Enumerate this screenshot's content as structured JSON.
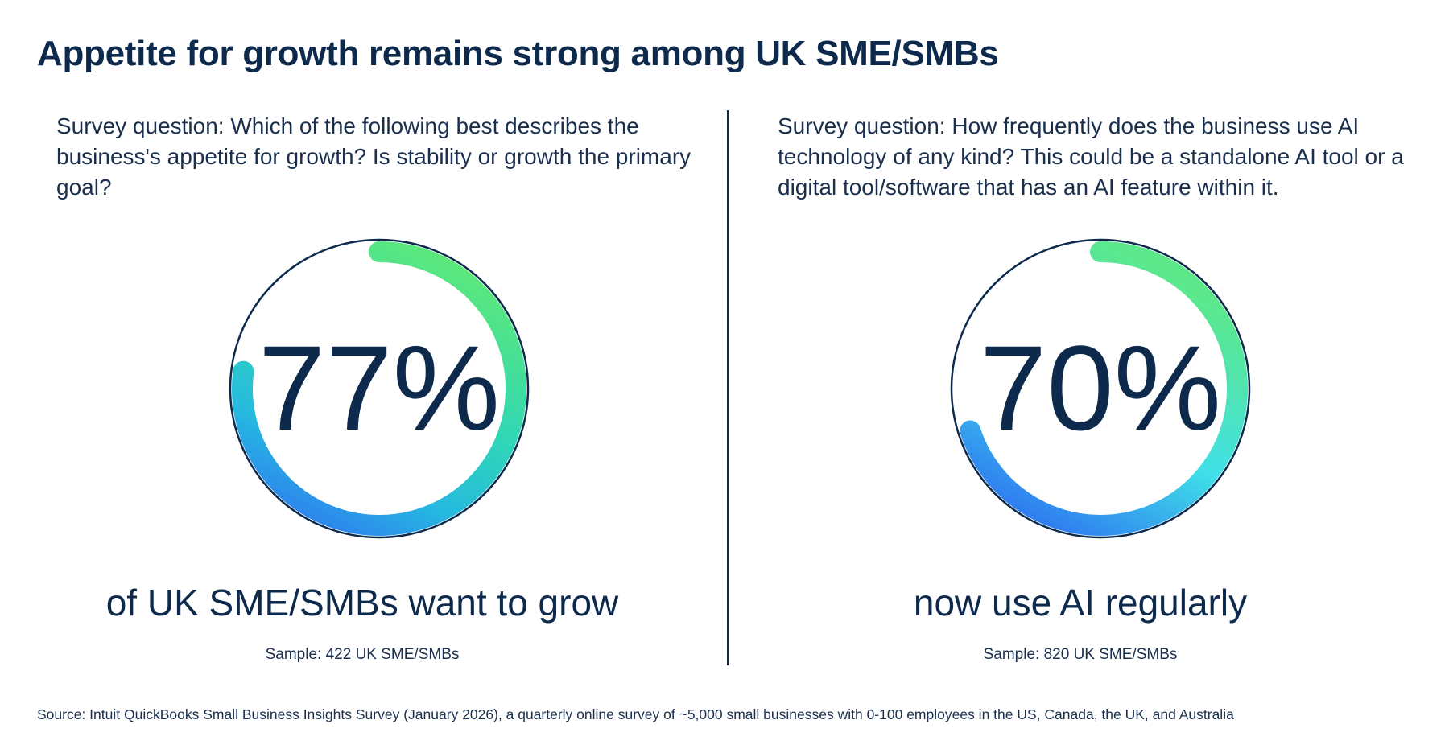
{
  "title": "Appetite for growth remains strong among UK SME/SMBs",
  "left": {
    "question": "Survey question: Which of the following best describes the business's appetite for growth? Is stability or growth the primary goal?",
    "stat": "77%",
    "caption": "of UK SME/SMBs want to grow",
    "sample": "Sample: 422 UK SME/SMBs"
  },
  "right": {
    "question": "Survey question: How frequently does the business use AI technology of any kind? This could be a standalone AI tool or a digital tool/software that has an AI feature within it.",
    "stat": "70%",
    "caption": "now use AI regularly",
    "sample": "Sample: 820 UK SME/SMBs"
  },
  "source": "Source: Intuit QuickBooks Small Business Insights Survey (January 2026), a quarterly online survey of ~5,000 small businesses with 0-100 employees in the US, Canada, the UK, and Australia",
  "colors": {
    "navy": "#0d2a4d",
    "left_gradient": [
      "#5ce87a",
      "#2fd6b8",
      "#25b9e0",
      "#2f7df0"
    ],
    "right_gradient": [
      "#5ce88a",
      "#3fe0e8",
      "#2f7df0"
    ]
  },
  "chart_data": [
    {
      "type": "donut",
      "title": "",
      "values": [
        77,
        23
      ],
      "value_label": "77%",
      "caption": "of UK SME/SMBs want to grow"
    },
    {
      "type": "donut",
      "title": "",
      "values": [
        70,
        30
      ],
      "value_label": "70%",
      "caption": "now use AI regularly"
    }
  ]
}
